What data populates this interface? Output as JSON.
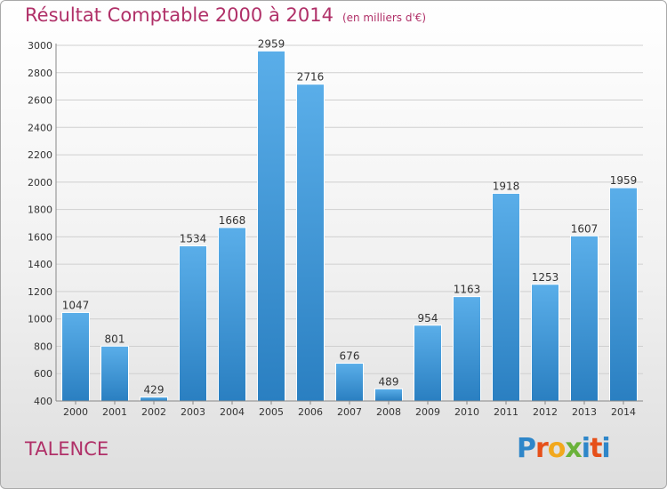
{
  "header": {
    "title": "Résultat Comptable 2000 à 2014",
    "unit_note": "(en milliers d'€)"
  },
  "footer": {
    "commune": "TALENCE",
    "logo_text": "Proxiti",
    "logo_colors": [
      "#2e86c9",
      "#e6501a",
      "#f2a81d",
      "#6ab23a",
      "#2e86c9",
      "#e6501a",
      "#2e86c9"
    ]
  },
  "colors": {
    "accent": "#b03068",
    "bar_top": "#5aaee9",
    "bar_bottom": "#2a7fc1",
    "grid": "#cfcfcf",
    "axis_text": "#333333"
  },
  "chart_data": {
    "type": "bar",
    "title": "Résultat Comptable 2000 à 2014",
    "subtitle": "(en milliers d'€)",
    "categories": [
      "2000",
      "2001",
      "2002",
      "2003",
      "2004",
      "2005",
      "2006",
      "2007",
      "2008",
      "2009",
      "2010",
      "2011",
      "2012",
      "2013",
      "2014"
    ],
    "values": [
      1047,
      801,
      429,
      1534,
      1668,
      2959,
      2716,
      676,
      489,
      954,
      1163,
      1918,
      1253,
      1607,
      1959
    ],
    "ylim": [
      400,
      3000
    ],
    "yticks": [
      400,
      600,
      800,
      1000,
      1200,
      1400,
      1600,
      1800,
      2000,
      2200,
      2400,
      2600,
      2800,
      3000
    ],
    "grid": true,
    "data_labels": true,
    "xlabel": "",
    "ylabel": ""
  }
}
